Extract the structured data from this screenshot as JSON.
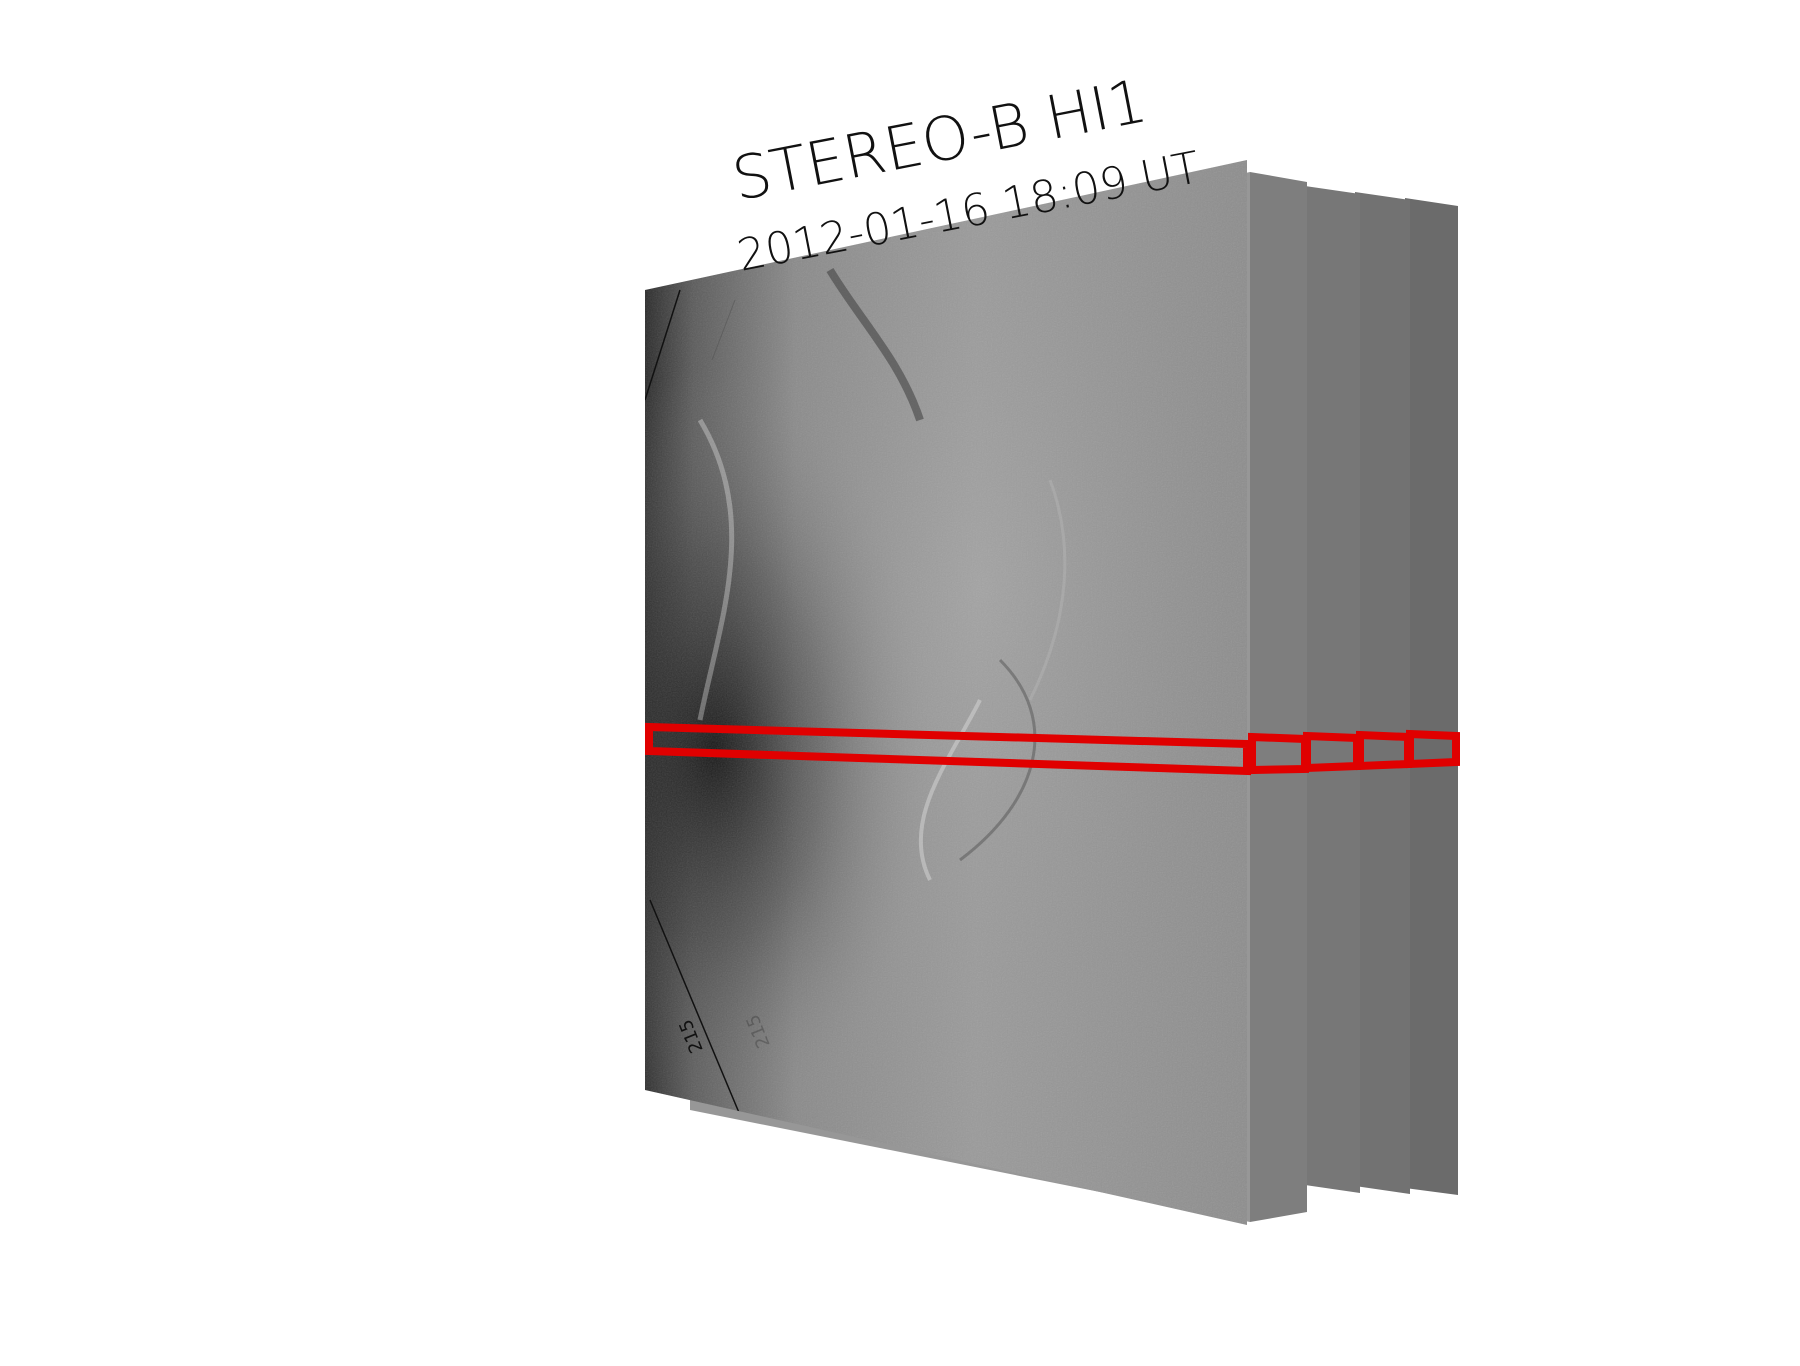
{
  "title": {
    "instrument": "STEREO-B HI1",
    "timestamp": "2012-01-16 18:09 UT"
  },
  "frames": {
    "count": 5,
    "label": "215"
  },
  "colors": {
    "highlight": "#e00000",
    "frame_gray_front": "#8b8b8b",
    "frame_gray_back": "#6f6f6f",
    "background": "#ffffff"
  }
}
